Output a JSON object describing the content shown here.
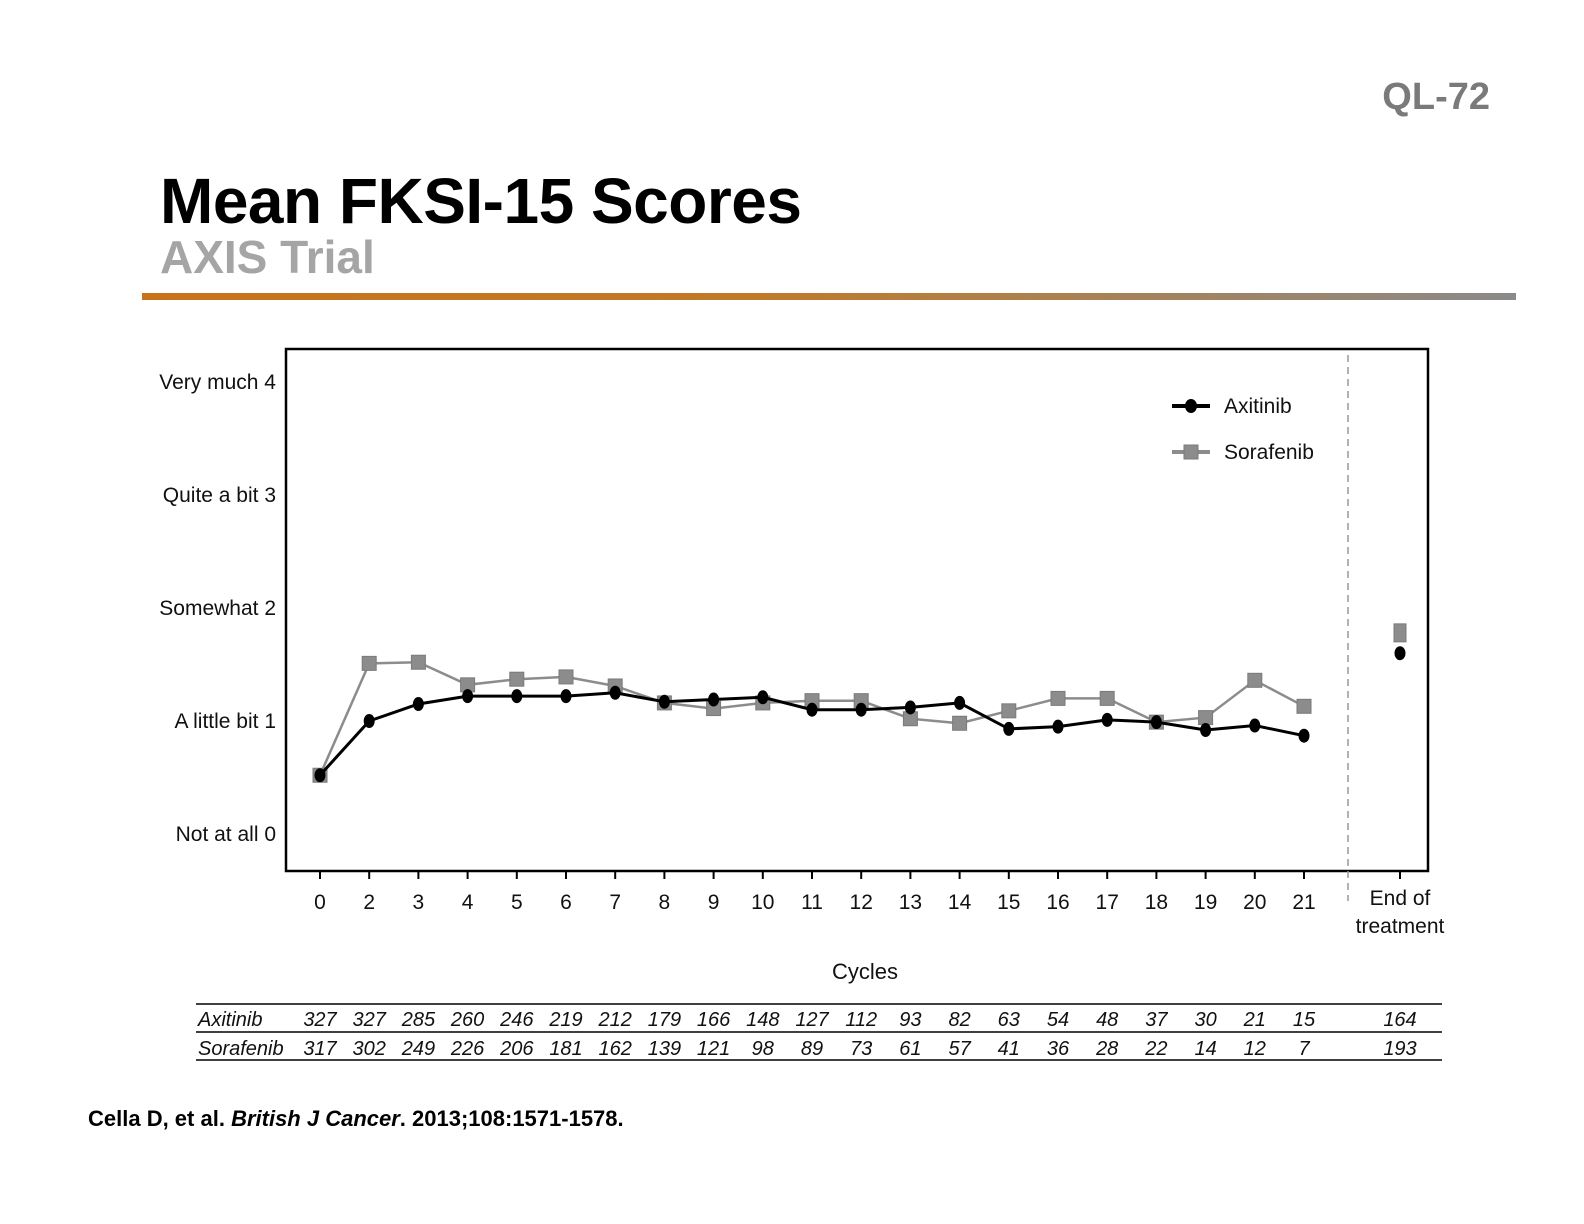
{
  "slide_id": "QL-72",
  "title": "Mean FKSI-15 Scores",
  "subtitle": "AXIS Trial",
  "citation": {
    "authors": "Cella D, et al. ",
    "journal": "British J Cancer",
    "details": ". 2013;108:1571-1578."
  },
  "colors": {
    "accent_rule": "#c8731a",
    "axitinib": "#000000",
    "sorafenib": "#8c8c8c"
  },
  "chart_data": {
    "type": "line",
    "xlabel": "Cycles",
    "ylabel": "",
    "ylim": [
      0,
      4.2
    ],
    "x": [
      "0",
      "2",
      "3",
      "4",
      "5",
      "6",
      "7",
      "8",
      "9",
      "10",
      "11",
      "12",
      "13",
      "14",
      "15",
      "16",
      "17",
      "18",
      "19",
      "20",
      "21"
    ],
    "end_label": [
      "End of",
      "treatment"
    ],
    "y_ticks": [
      {
        "value": 4,
        "label": "Very much 4"
      },
      {
        "value": 3,
        "label": "Quite a bit 3"
      },
      {
        "value": 2,
        "label": "Somewhat 2"
      },
      {
        "value": 1,
        "label": "A little bit 1"
      },
      {
        "value": 0,
        "label": "Not at all 0"
      }
    ],
    "legend_position": "top-right",
    "series": [
      {
        "name": "Axitinib",
        "marker": "circle",
        "values": [
          0.52,
          1.0,
          1.15,
          1.22,
          1.22,
          1.22,
          1.25,
          1.17,
          1.19,
          1.21,
          1.1,
          1.1,
          1.12,
          1.16,
          0.93,
          0.95,
          1.01,
          0.99,
          0.92,
          0.96,
          0.87
        ],
        "end_value": 1.6
      },
      {
        "name": "Sorafenib",
        "marker": "square",
        "values": [
          0.52,
          1.51,
          1.52,
          1.32,
          1.37,
          1.39,
          1.31,
          1.16,
          1.11,
          1.16,
          1.18,
          1.18,
          1.02,
          0.98,
          1.09,
          1.2,
          1.2,
          0.99,
          1.03,
          1.36,
          1.13
        ],
        "end_value": 1.78
      }
    ],
    "at_risk": {
      "rows": [
        {
          "label": "Axitinib",
          "values": [
            "327",
            "327",
            "285",
            "260",
            "246",
            "219",
            "212",
            "179",
            "166",
            "148",
            "127",
            "112",
            "93",
            "82",
            "63",
            "54",
            "48",
            "37",
            "30",
            "21",
            "15"
          ],
          "end": "164"
        },
        {
          "label": "Sorafenib",
          "values": [
            "317",
            "302",
            "249",
            "226",
            "206",
            "181",
            "162",
            "139",
            "121",
            "98",
            "89",
            "73",
            "61",
            "57",
            "41",
            "36",
            "28",
            "22",
            "14",
            "12",
            "7"
          ],
          "end": "193"
        }
      ]
    }
  }
}
